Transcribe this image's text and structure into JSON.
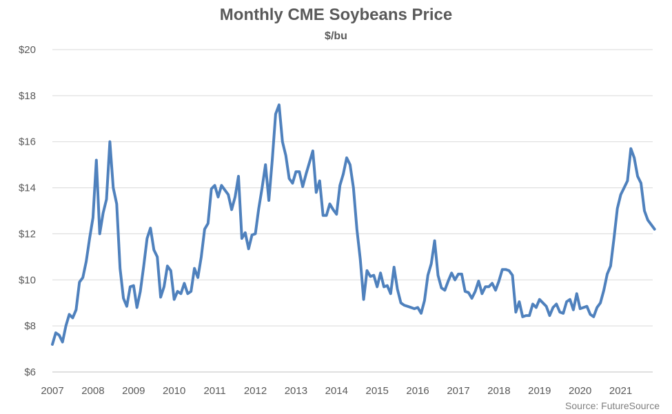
{
  "chart_data": {
    "type": "line",
    "title": "Monthly CME Soybeans Price",
    "subtitle": "$/bu",
    "xlabel": "",
    "ylabel": "",
    "source": "Source: FutureSource",
    "grid": true,
    "legend": "none",
    "ylim": [
      6,
      20
    ],
    "xlim": [
      2007,
      2022
    ],
    "y_ticks": [
      {
        "value": 6,
        "label": "$6"
      },
      {
        "value": 8,
        "label": "$8"
      },
      {
        "value": 10,
        "label": "$10"
      },
      {
        "value": 12,
        "label": "$12"
      },
      {
        "value": 14,
        "label": "$14"
      },
      {
        "value": 16,
        "label": "$16"
      },
      {
        "value": 18,
        "label": "$18"
      },
      {
        "value": 20,
        "label": "$20"
      }
    ],
    "x_ticks": [
      {
        "value": 2007,
        "label": "2007"
      },
      {
        "value": 2008,
        "label": "2008"
      },
      {
        "value": 2009,
        "label": "2009"
      },
      {
        "value": 2010,
        "label": "2010"
      },
      {
        "value": 2011,
        "label": "2011"
      },
      {
        "value": 2012,
        "label": "2012"
      },
      {
        "value": 2013,
        "label": "2013"
      },
      {
        "value": 2014,
        "label": "2014"
      },
      {
        "value": 2015,
        "label": "2015"
      },
      {
        "value": 2016,
        "label": "2016"
      },
      {
        "value": 2017,
        "label": "2017"
      },
      {
        "value": 2018,
        "label": "2018"
      },
      {
        "value": 2019,
        "label": "2019"
      },
      {
        "value": 2020,
        "label": "2020"
      },
      {
        "value": 2021,
        "label": "2021"
      }
    ],
    "series": [
      {
        "color": "#4f81bd",
        "start": "2007-01",
        "frequency": "monthly",
        "values": [
          7.2,
          7.7,
          7.6,
          7.3,
          8.0,
          8.5,
          8.35,
          8.7,
          9.9,
          10.1,
          10.8,
          11.8,
          12.7,
          15.2,
          12.0,
          12.9,
          13.5,
          16.0,
          14.0,
          13.3,
          10.5,
          9.2,
          8.85,
          9.7,
          9.75,
          8.8,
          9.5,
          10.6,
          11.8,
          12.25,
          11.3,
          11.0,
          9.25,
          9.7,
          10.6,
          10.4,
          9.15,
          9.5,
          9.4,
          9.85,
          9.4,
          9.5,
          10.5,
          10.1,
          11.0,
          12.2,
          12.45,
          13.95,
          14.1,
          13.6,
          14.1,
          13.9,
          13.7,
          13.05,
          13.6,
          14.5,
          11.8,
          12.05,
          11.35,
          11.95,
          12.0,
          13.1,
          14.0,
          15.0,
          13.45,
          15.2,
          17.2,
          17.6,
          16.0,
          15.4,
          14.4,
          14.2,
          14.7,
          14.7,
          14.05,
          14.6,
          15.1,
          15.6,
          13.8,
          14.3,
          12.8,
          12.8,
          13.3,
          13.05,
          12.85,
          14.1,
          14.6,
          15.3,
          15.0,
          14.0,
          12.2,
          10.9,
          9.15,
          10.4,
          10.15,
          10.2,
          9.7,
          10.3,
          9.7,
          9.75,
          9.4,
          10.55,
          9.6,
          9.0,
          8.9,
          8.85,
          8.8,
          8.75,
          8.8,
          8.55,
          9.1,
          10.2,
          10.7,
          11.7,
          10.2,
          9.65,
          9.55,
          9.95,
          10.3,
          10.0,
          10.25,
          10.25,
          9.5,
          9.45,
          9.2,
          9.5,
          9.95,
          9.4,
          9.7,
          9.7,
          9.85,
          9.55,
          9.95,
          10.45,
          10.45,
          10.4,
          10.2,
          8.6,
          9.05,
          8.4,
          8.45,
          8.45,
          8.95,
          8.8,
          9.15,
          9.0,
          8.85,
          8.45,
          8.8,
          8.95,
          8.6,
          8.55,
          9.05,
          9.15,
          8.7,
          9.4,
          8.75,
          8.8,
          8.85,
          8.5,
          8.4,
          8.8,
          9.0,
          9.55,
          10.25,
          10.6,
          11.8,
          13.1,
          13.7,
          14.0,
          14.3,
          15.7,
          15.3,
          14.5,
          14.2,
          13.0,
          12.6,
          12.4,
          12.2
        ]
      }
    ]
  }
}
